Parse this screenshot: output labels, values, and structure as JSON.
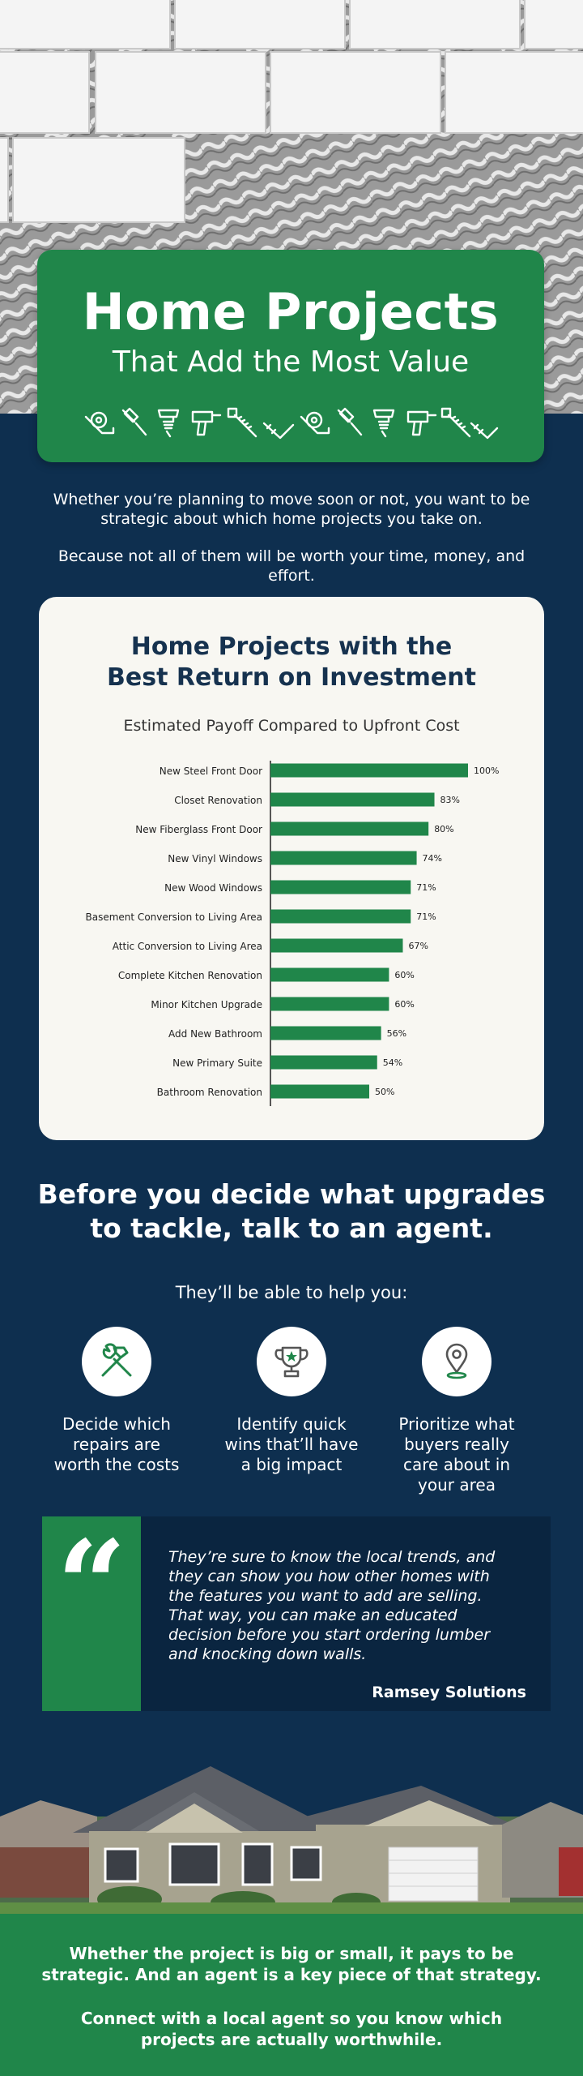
{
  "header": {
    "title": "Home Projects",
    "subtitle": "That Add the Most Value",
    "tool_icons": [
      "tape-measure-icon",
      "paint-brush-icon",
      "screw-icon",
      "drill-icon",
      "saw-icon",
      "level-icon",
      "tape-measure-icon",
      "paint-brush-icon",
      "screw-icon",
      "drill-icon",
      "saw-icon",
      "level-icon"
    ]
  },
  "intro": {
    "line1": "Whether you’re planning to move soon or not, you want to be strategic about which home projects you take on.",
    "line2": "Because not all of them will be worth your time, money, and effort."
  },
  "chart_data": {
    "type": "bar",
    "orientation": "horizontal",
    "title_line1": "Home Projects with the",
    "title_line2": "Best Return on Investment",
    "subtitle": "Estimated Payoff Compared to Upfront Cost",
    "categories": [
      "New Steel Front Door",
      "Closet Renovation",
      "New Fiberglass Front Door",
      "New Vinyl Windows",
      "New Wood Windows",
      "Basement Conversion to Living Area",
      "Attic Conversion to Living Area",
      "Complete Kitchen Renovation",
      "Minor Kitchen Upgrade",
      "Add New Bathroom",
      "New Primary Suite",
      "Bathroom Renovation"
    ],
    "values": [
      100,
      83,
      80,
      74,
      71,
      71,
      67,
      60,
      60,
      56,
      54,
      50
    ],
    "value_labels": [
      "100%",
      "83%",
      "80%",
      "74%",
      "71%",
      "71%",
      "67%",
      "60%",
      "60%",
      "56%",
      "54%",
      "50%"
    ],
    "xlim": [
      0,
      100
    ],
    "grid": false,
    "bar_color": "#20864a"
  },
  "agent": {
    "heading_line1": "Before you decide what upgrades",
    "heading_line2": "to tackle, talk to an agent.",
    "lead": "They’ll be able to help you:",
    "benefits": [
      {
        "icon": "hammer-wrench-icon",
        "line1": "Decide which",
        "line2": "repairs are",
        "line3": "worth the costs",
        "line4": ""
      },
      {
        "icon": "trophy-icon",
        "line1": "Identify quick",
        "line2": "wins that’ll have",
        "line3": "a big impact",
        "line4": ""
      },
      {
        "icon": "location-pin-icon",
        "line1": "Prioritize what",
        "line2": "buyers really",
        "line3": "care about in",
        "line4": "your area"
      }
    ]
  },
  "quote": {
    "mark": "“",
    "line1": "They’re sure to know the local trends, and",
    "line2": "they can show you how other homes with",
    "line3": "the features you want to add are selling.",
    "line4": "That way, you can make an educated",
    "line5": "decision before you start ordering lumber",
    "line6": "and knocking down walls.",
    "author": "Ramsey Solutions"
  },
  "footer": {
    "p1_line1": "Whether the project is big or small, it pays to be",
    "p1_line2": "strategic. And an agent is a key piece of that strategy.",
    "p2_line1": "Connect with a local agent so you know which",
    "p2_line2": "projects are actually worthwhile."
  },
  "colors": {
    "brand_green": "#20864a",
    "navy": "#0e2f4f",
    "dark_navy": "#0a2540",
    "card_bg": "#f8f7f2",
    "chart_title": "#16324f"
  }
}
